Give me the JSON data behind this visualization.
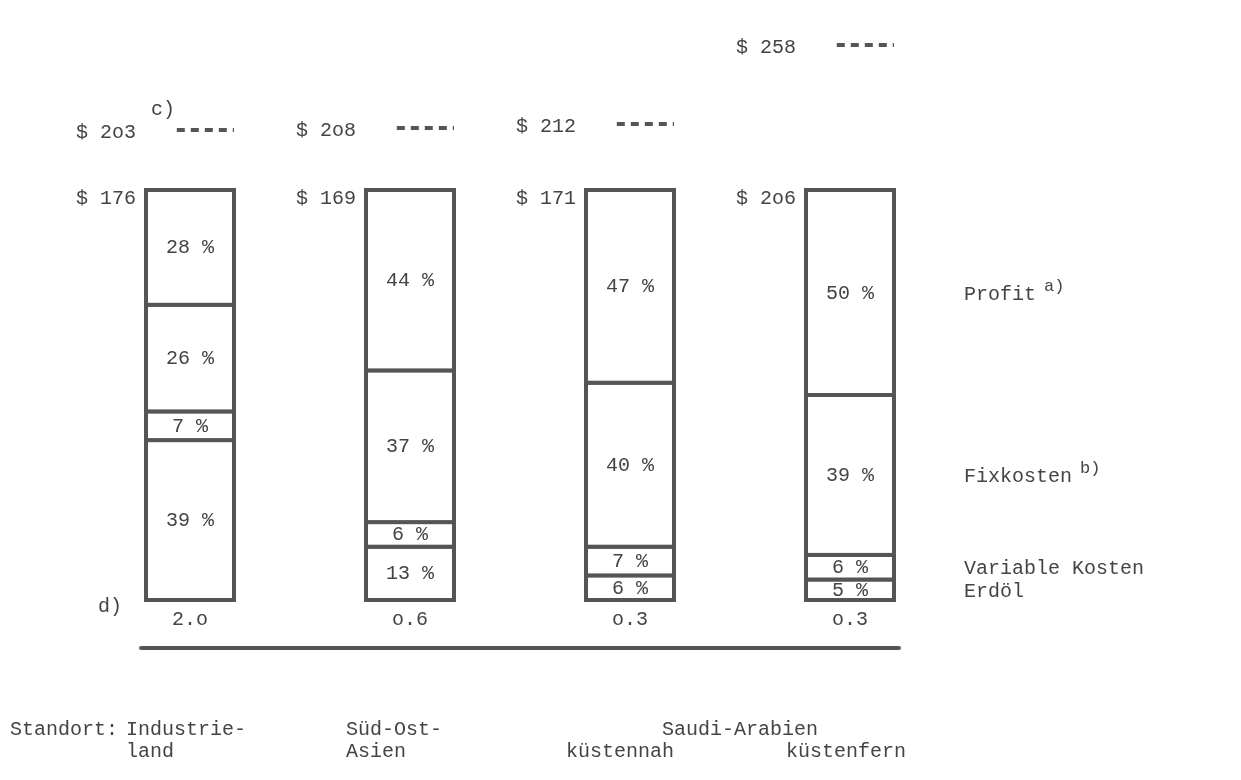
{
  "chart_data": {
    "type": "bar",
    "stacked": true,
    "xlabel": "Standort:",
    "categories": [
      "Industrie-\nland",
      "Süd-Ost-\nAsien",
      "küstennah",
      "küstenfern"
    ],
    "series": [
      {
        "name": "Erdöl",
        "color": "#ffffff",
        "values": [
          39,
          13,
          6,
          5
        ],
        "value_labels": [
          "39 %",
          "13 %",
          "6 %",
          "5 %"
        ]
      },
      {
        "name": "Variable Kosten",
        "color": "#ffffff",
        "values": [
          7,
          6,
          7,
          6
        ],
        "value_labels": [
          "7 %",
          "6 %",
          "7 %",
          "6 %"
        ]
      },
      {
        "name": "Fixkosten$^{b)}$",
        "color": "#ffffff",
        "values": [
          26,
          37,
          40,
          39
        ],
        "value_labels": [
          "26 %",
          "37 %",
          "40 %",
          "39 %"
        ]
      },
      {
        "name": "Profit$^{a)}$",
        "color": "#ffffff",
        "values": [
          28,
          44,
          47,
          50
        ],
        "value_labels": [
          "28 %",
          "44 %",
          "47 %",
          "50 %"
        ]
      }
    ],
    "annotations": [
      "$ 2o3",
      "$ 2o8",
      "$ 212",
      "$ 258",
      "$ 176",
      "$ 169",
      "$ 171",
      "$ 2o6",
      "2.o",
      "o.6",
      "o.3",
      "o.3",
      "c)",
      "d)",
      "Saudi-Arabien"
    ]
  }
}
